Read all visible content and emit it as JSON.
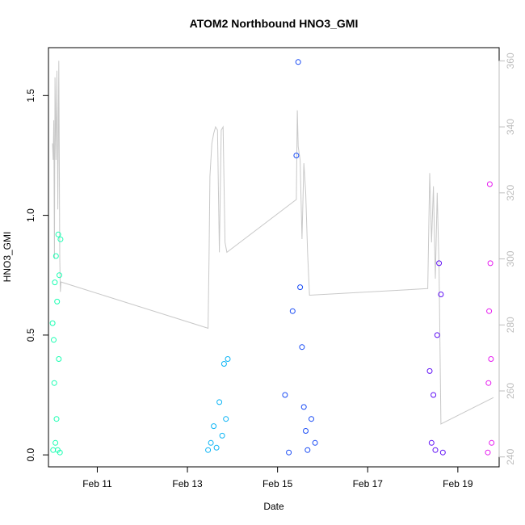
{
  "chart_data": {
    "type": "scatter",
    "title": "ATOM2 Northbound HNO3_GMI",
    "xlabel": "Date",
    "ylabel": "HNO3_GMI",
    "xlim": [
      "2017-02-09T22:00",
      "2017-02-19T22:00"
    ],
    "xticks": [
      {
        "date": "2017-02-11",
        "label": "Feb 11"
      },
      {
        "date": "2017-02-13",
        "label": "Feb 13"
      },
      {
        "date": "2017-02-15",
        "label": "Feb 15"
      },
      {
        "date": "2017-02-17",
        "label": "Feb 17"
      },
      {
        "date": "2017-02-19",
        "label": "Feb 19"
      }
    ],
    "ylim": [
      -0.05,
      1.7
    ],
    "yticks": [
      {
        "value": 0.0,
        "label": "0.0"
      },
      {
        "value": 0.5,
        "label": "0.5"
      },
      {
        "value": 1.0,
        "label": "1.0"
      },
      {
        "value": 1.5,
        "label": "1.5"
      }
    ],
    "y2lim": [
      237,
      364
    ],
    "y2ticks": [
      {
        "value": 240,
        "label": "240"
      },
      {
        "value": 260,
        "label": "260"
      },
      {
        "value": 280,
        "label": "280"
      },
      {
        "value": 300,
        "label": "300"
      },
      {
        "value": 320,
        "label": "320"
      },
      {
        "value": 340,
        "label": "340"
      },
      {
        "value": 360,
        "label": "360"
      }
    ],
    "grid": false,
    "series": [
      {
        "color": "#1affb2",
        "x": [
          "2017-02-10T00:12",
          "2017-02-10T00:30",
          "2017-02-10T00:48",
          "2017-02-10T01:06",
          "2017-02-10T01:24",
          "2017-02-10T01:42",
          "2017-02-10T02:00",
          "2017-02-10T02:18",
          "2017-02-10T02:36",
          "2017-02-10T02:54",
          "2017-02-10T03:12",
          "2017-02-10T03:30",
          "2017-02-10T03:48",
          "2017-02-10T04:06",
          "2017-02-10T04:24"
        ],
        "y": [
          0.55,
          0.02,
          0.48,
          0.3,
          0.72,
          0.05,
          0.83,
          0.15,
          0.64,
          0.02,
          0.92,
          0.4,
          0.75,
          0.01,
          0.9
        ]
      },
      {
        "color": "#0ab4f5",
        "x": [
          "2017-02-13T11:00",
          "2017-02-13T12:30",
          "2017-02-13T14:00",
          "2017-02-13T15:30",
          "2017-02-13T17:00",
          "2017-02-13T18:30",
          "2017-02-13T19:30",
          "2017-02-13T20:30",
          "2017-02-13T21:30"
        ],
        "y": [
          0.02,
          0.05,
          0.12,
          0.03,
          0.22,
          0.08,
          0.38,
          0.15,
          0.4
        ]
      },
      {
        "color": "#1a4cf5",
        "x": [
          "2017-02-15T04:00",
          "2017-02-15T06:00",
          "2017-02-15T08:00",
          "2017-02-15T10:00",
          "2017-02-15T11:00",
          "2017-02-15T12:00",
          "2017-02-15T13:00",
          "2017-02-15T14:00",
          "2017-02-15T15:00",
          "2017-02-15T16:00",
          "2017-02-15T18:00",
          "2017-02-15T20:00"
        ],
        "y": [
          0.25,
          0.01,
          0.6,
          1.25,
          1.64,
          0.7,
          0.45,
          0.2,
          0.1,
          0.02,
          0.15,
          0.05
        ]
      },
      {
        "color": "#6010f5",
        "x": [
          "2017-02-18T09:00",
          "2017-02-18T10:00",
          "2017-02-18T11:00",
          "2017-02-18T12:00",
          "2017-02-18T13:00",
          "2017-02-18T14:00",
          "2017-02-18T15:00",
          "2017-02-18T16:00"
        ],
        "y": [
          0.35,
          0.05,
          0.25,
          0.02,
          0.5,
          0.8,
          0.67,
          0.01
        ]
      },
      {
        "color": "#e61af0",
        "x": [
          "2017-02-19T16:00",
          "2017-02-19T16:20",
          "2017-02-19T16:40",
          "2017-02-19T17:00",
          "2017-02-19T17:20",
          "2017-02-19T17:40",
          "2017-02-19T18:00"
        ],
        "y": [
          0.01,
          0.3,
          0.6,
          1.13,
          0.8,
          0.4,
          0.05
        ]
      }
    ],
    "secondary_line": {
      "color": "#c8c8c8",
      "x": [
        "2017-02-10T00:10",
        "2017-02-10T00:30",
        "2017-02-10T00:50",
        "2017-02-10T01:10",
        "2017-02-10T01:30",
        "2017-02-10T02:00",
        "2017-02-10T02:30",
        "2017-02-10T03:00",
        "2017-02-10T03:30",
        "2017-02-10T04:00",
        "2017-02-10T04:20",
        "2017-02-10T04:40",
        "2017-02-13T11:00",
        "2017-02-13T11:30",
        "2017-02-13T12:00",
        "2017-02-13T13:00",
        "2017-02-13T14:00",
        "2017-02-13T15:00",
        "2017-02-13T16:00",
        "2017-02-13T17:00",
        "2017-02-13T18:00",
        "2017-02-13T19:00",
        "2017-02-13T20:00",
        "2017-02-13T21:00",
        "2017-02-15T10:00",
        "2017-02-15T10:30",
        "2017-02-15T11:00",
        "2017-02-15T12:00",
        "2017-02-15T13:00",
        "2017-02-15T14:00",
        "2017-02-15T15:00",
        "2017-02-15T16:00",
        "2017-02-15T17:00",
        "2017-02-18T08:00",
        "2017-02-18T09:00",
        "2017-02-18T10:00",
        "2017-02-18T11:00",
        "2017-02-18T12:00",
        "2017-02-18T13:00",
        "2017-02-18T14:00",
        "2017-02-18T15:00",
        "2017-02-19T19:00"
      ],
      "y": [
        335,
        330,
        342,
        300,
        355,
        330,
        357,
        315,
        360,
        300,
        290,
        293,
        279,
        300,
        325,
        335,
        338,
        340,
        339,
        302,
        339,
        340,
        305,
        302,
        318,
        345,
        334,
        330,
        306,
        329,
        320,
        302,
        289,
        291,
        326,
        305,
        322,
        294,
        320,
        297,
        250,
        258
      ]
    }
  }
}
